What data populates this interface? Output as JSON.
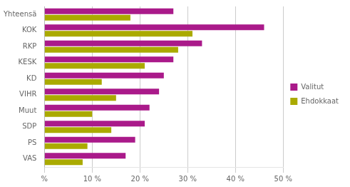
{
  "chart_data": {
    "type": "bar",
    "orientation": "horizontal",
    "categories": [
      "Yhteensä",
      "KOK",
      "RKP",
      "KESK",
      "KD",
      "VIHR",
      "Muut",
      "SDP",
      "PS",
      "VAS"
    ],
    "series": [
      {
        "name": "Valitut",
        "color": "#aa1a8a",
        "values": [
          27,
          46,
          33,
          27,
          25,
          24,
          22,
          21,
          19,
          17
        ]
      },
      {
        "name": "Ehdokkaat",
        "color": "#aaaa00",
        "values": [
          18,
          31,
          28,
          21,
          12,
          15,
          10,
          14,
          9,
          8
        ]
      }
    ],
    "xlim": [
      0,
      50
    ],
    "xticks": [
      {
        "value": 0,
        "label": "%"
      },
      {
        "value": 10,
        "label": "10 %"
      },
      {
        "value": 20,
        "label": "20 %"
      },
      {
        "value": 30,
        "label": "30 %"
      },
      {
        "value": 40,
        "label": "40 %"
      },
      {
        "value": 50,
        "label": "50 %"
      }
    ],
    "grid": "x",
    "legend": "right"
  }
}
